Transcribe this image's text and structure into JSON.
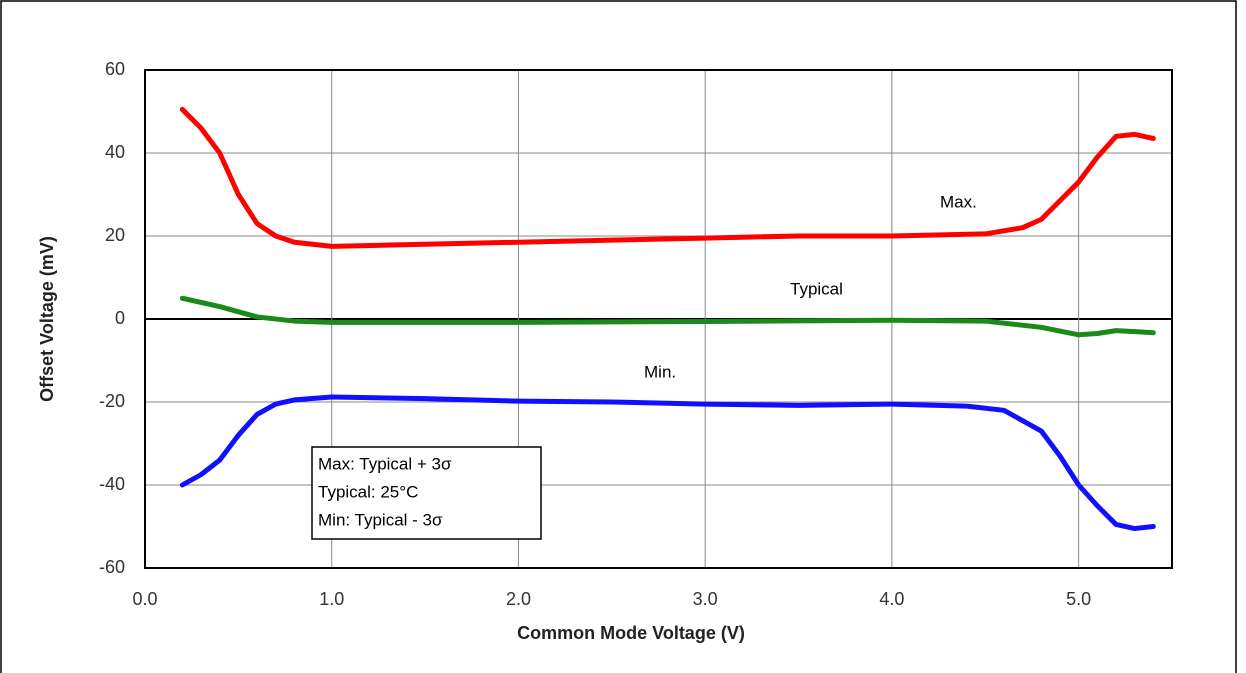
{
  "chart_data": {
    "type": "line",
    "xlabel": "Common Mode Voltage (V)",
    "ylabel": "Offset Voltage (mV)",
    "xlim": [
      0,
      5.5
    ],
    "xticks": [
      {
        "value": 0,
        "label": "0.0"
      },
      {
        "value": 1,
        "label": "1.0"
      },
      {
        "value": 2,
        "label": "2.0"
      },
      {
        "value": 3,
        "label": "3.0"
      },
      {
        "value": 4,
        "label": "4.0"
      },
      {
        "value": 5,
        "label": "5.0"
      }
    ],
    "ylim": [
      -60,
      60
    ],
    "yticks": [
      -60,
      -40,
      -20,
      0,
      20,
      40,
      60
    ],
    "grid": true,
    "series": [
      {
        "name": "Max.",
        "color": "#ff0000",
        "x": [
          0.2,
          0.3,
          0.4,
          0.5,
          0.6,
          0.7,
          0.8,
          1.0,
          1.5,
          2.0,
          2.5,
          3.0,
          3.5,
          4.0,
          4.5,
          4.7,
          4.8,
          5.0,
          5.1,
          5.2,
          5.3,
          5.4
        ],
        "values": [
          50.5,
          46,
          40,
          30,
          23,
          20,
          18.5,
          17.5,
          18,
          18.5,
          19,
          19.5,
          20,
          20,
          20.5,
          22,
          24,
          33,
          39,
          44,
          44.5,
          43.5
        ]
      },
      {
        "name": "Typical",
        "color": "#1a8a1a",
        "x": [
          0.2,
          0.4,
          0.6,
          0.8,
          1.0,
          2.0,
          3.0,
          4.0,
          4.5,
          4.8,
          5.0,
          5.1,
          5.2,
          5.4
        ],
        "values": [
          5,
          3,
          0.5,
          -0.5,
          -0.8,
          -0.8,
          -0.6,
          -0.3,
          -0.5,
          -2,
          -3.8,
          -3.5,
          -2.8,
          -3.3
        ]
      },
      {
        "name": "Min.",
        "color": "#1010ff",
        "x": [
          0.2,
          0.3,
          0.4,
          0.5,
          0.6,
          0.7,
          0.8,
          1.0,
          1.5,
          2.0,
          2.5,
          3.0,
          3.5,
          4.0,
          4.4,
          4.6,
          4.8,
          4.9,
          5.0,
          5.1,
          5.2,
          5.3,
          5.4
        ],
        "values": [
          -40,
          -37.5,
          -34,
          -28,
          -23,
          -20.5,
          -19.5,
          -18.8,
          -19.2,
          -19.8,
          -20,
          -20.5,
          -20.8,
          -20.5,
          -21,
          -22,
          -27,
          -33,
          -40,
          -45,
          -49.5,
          -50.5,
          -50
        ]
      }
    ],
    "note": [
      "Max: Typical + 3σ",
      "Typical: 25°C",
      "Min: Typical - 3σ"
    ]
  }
}
